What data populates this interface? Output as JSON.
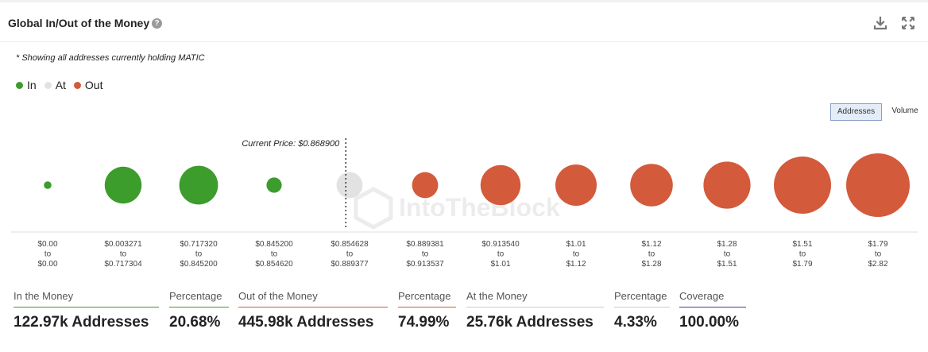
{
  "header": {
    "title": "Global In/Out of the Money",
    "help_glyph": "?"
  },
  "note": "* Showing all addresses currently holding MATIC",
  "legend": [
    {
      "label": "In",
      "color": "#3c9c2c"
    },
    {
      "label": "At",
      "color": "#e2e2e2"
    },
    {
      "label": "Out",
      "color": "#d35a3a"
    }
  ],
  "toggles": {
    "addresses": "Addresses",
    "volume": "Volume",
    "active": "addresses"
  },
  "watermark": "IntoTheBlock",
  "chart_data": {
    "type": "scatter",
    "current_price_label": "Current Price: $0.868900",
    "buckets": [
      {
        "from": "$0.00",
        "to": "$0.00",
        "status": "in",
        "relative_size": 0.12
      },
      {
        "from": "$0.003271",
        "to": "$0.717304",
        "status": "in",
        "relative_size": 0.58
      },
      {
        "from": "$0.717320",
        "to": "$0.845200",
        "status": "in",
        "relative_size": 0.61
      },
      {
        "from": "$0.845200",
        "to": "$0.854620",
        "status": "in",
        "relative_size": 0.24
      },
      {
        "from": "$0.854628",
        "to": "$0.889377",
        "status": "at",
        "relative_size": 0.41
      },
      {
        "from": "$0.889381",
        "to": "$0.913537",
        "status": "out",
        "relative_size": 0.41
      },
      {
        "from": "$0.913540",
        "to": "$1.01",
        "status": "out",
        "relative_size": 0.63
      },
      {
        "from": "$1.01",
        "to": "$1.12",
        "status": "out",
        "relative_size": 0.65
      },
      {
        "from": "$1.12",
        "to": "$1.28",
        "status": "out",
        "relative_size": 0.67
      },
      {
        "from": "$1.28",
        "to": "$1.51",
        "status": "out",
        "relative_size": 0.74
      },
      {
        "from": "$1.51",
        "to": "$1.79",
        "status": "out",
        "relative_size": 0.9
      },
      {
        "from": "$1.79",
        "to": "$2.82",
        "status": "out",
        "relative_size": 1.0
      }
    ],
    "to_word": "to",
    "current_price_after_bucket": 3.95
  },
  "stats": [
    {
      "label": "In the Money",
      "value": "122.97k Addresses",
      "color": "#3c9c2c"
    },
    {
      "label": "Percentage",
      "value": "20.68%",
      "color": "#3c9c2c"
    },
    {
      "label": "Out of the Money",
      "value": "445.98k Addresses",
      "color": "#d35a3a"
    },
    {
      "label": "Percentage",
      "value": "74.99%",
      "color": "#d35a3a"
    },
    {
      "label": "At the Money",
      "value": "25.76k Addresses",
      "color": "#cccccc"
    },
    {
      "label": "Percentage",
      "value": "4.33%",
      "color": "#cccccc"
    },
    {
      "label": "Coverage",
      "value": "100.00%",
      "color": "#3d3da8"
    }
  ],
  "icons": [
    "help-icon",
    "download-icon",
    "expand-icon"
  ]
}
